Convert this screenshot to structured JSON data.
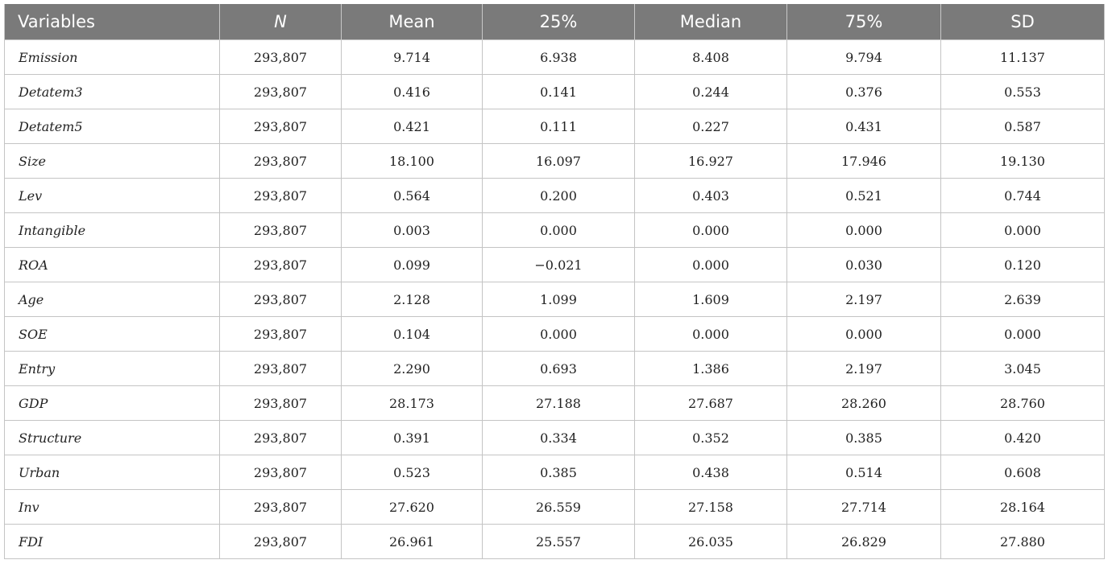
{
  "table": {
    "headers": {
      "variables": "Variables",
      "n": "N",
      "mean": "Mean",
      "p25": "25%",
      "median": "Median",
      "p75": "75%",
      "sd": "SD"
    },
    "rows": [
      {
        "variable": "Emission",
        "n": "293,807",
        "mean": "9.714",
        "p25": "6.938",
        "median": "8.408",
        "p75": "9.794",
        "sd": "11.137"
      },
      {
        "variable": "Detatem3",
        "n": "293,807",
        "mean": "0.416",
        "p25": "0.141",
        "median": "0.244",
        "p75": "0.376",
        "sd": "0.553"
      },
      {
        "variable": "Detatem5",
        "n": "293,807",
        "mean": "0.421",
        "p25": "0.111",
        "median": "0.227",
        "p75": "0.431",
        "sd": "0.587"
      },
      {
        "variable": "Size",
        "n": "293,807",
        "mean": "18.100",
        "p25": "16.097",
        "median": "16.927",
        "p75": "17.946",
        "sd": "19.130"
      },
      {
        "variable": "Lev",
        "n": "293,807",
        "mean": "0.564",
        "p25": "0.200",
        "median": "0.403",
        "p75": "0.521",
        "sd": "0.744"
      },
      {
        "variable": "Intangible",
        "n": "293,807",
        "mean": "0.003",
        "p25": "0.000",
        "median": "0.000",
        "p75": "0.000",
        "sd": "0.000"
      },
      {
        "variable": "ROA",
        "n": "293,807",
        "mean": "0.099",
        "p25": "−0.021",
        "median": "0.000",
        "p75": "0.030",
        "sd": "0.120"
      },
      {
        "variable": "Age",
        "n": "293,807",
        "mean": "2.128",
        "p25": "1.099",
        "median": "1.609",
        "p75": "2.197",
        "sd": "2.639"
      },
      {
        "variable": "SOE",
        "n": "293,807",
        "mean": "0.104",
        "p25": "0.000",
        "median": "0.000",
        "p75": "0.000",
        "sd": "0.000"
      },
      {
        "variable": "Entry",
        "n": "293,807",
        "mean": "2.290",
        "p25": "0.693",
        "median": "1.386",
        "p75": "2.197",
        "sd": "3.045"
      },
      {
        "variable": "GDP",
        "n": "293,807",
        "mean": "28.173",
        "p25": "27.188",
        "median": "27.687",
        "p75": "28.260",
        "sd": "28.760"
      },
      {
        "variable": "Structure",
        "n": "293,807",
        "mean": "0.391",
        "p25": "0.334",
        "median": "0.352",
        "p75": "0.385",
        "sd": "0.420"
      },
      {
        "variable": "Urban",
        "n": "293,807",
        "mean": "0.523",
        "p25": "0.385",
        "median": "0.438",
        "p75": "0.514",
        "sd": "0.608"
      },
      {
        "variable": "Inv",
        "n": "293,807",
        "mean": "27.620",
        "p25": "26.559",
        "median": "27.158",
        "p75": "27.714",
        "sd": "28.164"
      },
      {
        "variable": "FDI",
        "n": "293,807",
        "mean": "26.961",
        "p25": "25.557",
        "median": "26.035",
        "p75": "26.829",
        "sd": "27.880"
      }
    ]
  },
  "colors": {
    "header_background": "#7a7a7a",
    "header_text": "#ffffff",
    "grid_line": "#c4c4c4",
    "body_text": "#222222"
  }
}
